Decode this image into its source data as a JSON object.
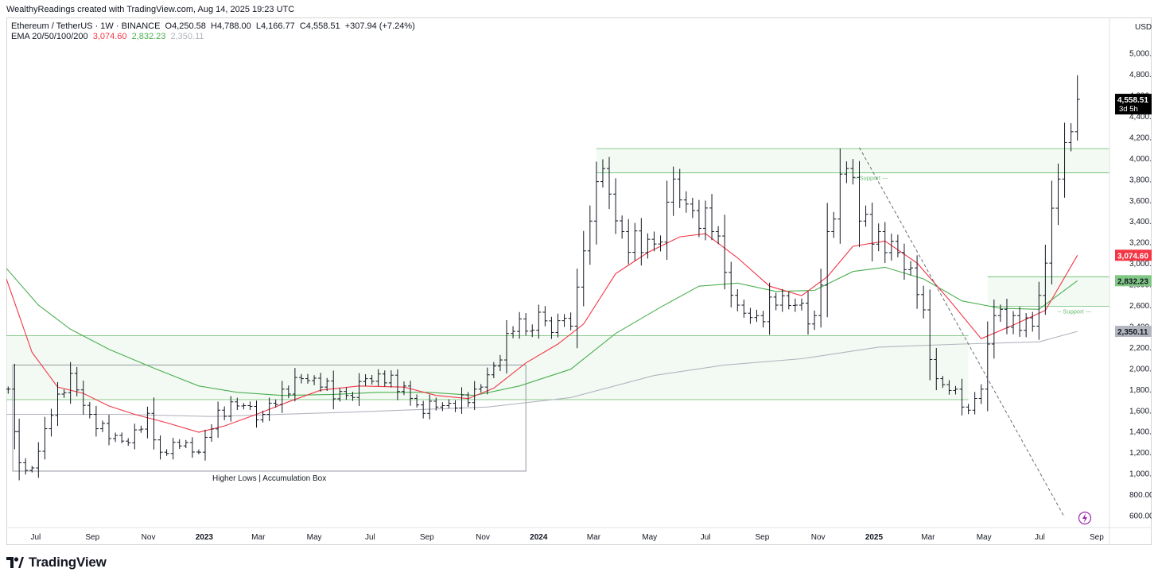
{
  "header": {
    "created_by": "WealthyReadings created with TradingView.com, Aug 14, 2025 19:23 UTC"
  },
  "legend": {
    "symbol": "Ethereum / TetherUS · 1W · BINANCE",
    "open_label": "O",
    "open": "4,250.58",
    "high_label": "H",
    "high": "4,788.00",
    "low_label": "L",
    "low": "4,166.77",
    "close_label": "C",
    "close": "4,558.51",
    "change": "+307.94 (+7.24%)",
    "ema_label": "EMA 20/50/100/200",
    "ema20": "3,074.60",
    "ema50": "2,832.23",
    "ema100": "2,350.11"
  },
  "price_scale": {
    "currency": "USDT",
    "last_price_label": "4,558.51",
    "countdown": "3d 5h",
    "ema20_label": "3,074.60",
    "ema50_label": "2,832.23",
    "ema100_label": "2,350.11"
  },
  "annotations": {
    "accumulation_box": "Higher Lows | Accumulation Box",
    "support_top": "Support",
    "support_right": "Support"
  },
  "footer": {
    "brand": "TradingView"
  },
  "colors": {
    "ema20": "#f23645",
    "ema50": "#4caf50",
    "ema100": "#b2b5be",
    "bar": "#131722",
    "zone_fill": "#e8f5e9",
    "zone_line": "#66bb6a",
    "box_line": "#9598a1",
    "last_price_bg": "#000000"
  },
  "chart_data": {
    "type": "ohlc-bar",
    "title": "Ethereum / TetherUS · 1W · BINANCE",
    "interval": "1W",
    "x_ticks": [
      "Jul",
      "Sep",
      "Nov",
      "2023",
      "Mar",
      "May",
      "Jul",
      "Sep",
      "Nov",
      "2024",
      "Mar",
      "May",
      "Jul",
      "Sep",
      "Nov",
      "2025",
      "Mar",
      "May",
      "Jul",
      "Sep"
    ],
    "x_range": [
      "2022-05-30",
      "2025-09-15"
    ],
    "y_ticks": [
      600,
      800,
      1000,
      1200,
      1400,
      1600,
      1800,
      2000,
      2200,
      2400,
      2600,
      2800,
      3000,
      3200,
      3400,
      3600,
      3800,
      4000,
      4200,
      4400,
      4600,
      4800,
      5000
    ],
    "ylim": [
      460,
      5300
    ],
    "grid": false,
    "price_closes": [
      [
        "2022-06-01",
        1800
      ],
      [
        "2022-06-13",
        1100
      ],
      [
        "2022-06-27",
        1050
      ],
      [
        "2022-07-18",
        1550
      ],
      [
        "2022-08-08",
        1950
      ],
      [
        "2022-08-29",
        1560
      ],
      [
        "2022-09-19",
        1330
      ],
      [
        "2022-10-10",
        1290
      ],
      [
        "2022-10-31",
        1570
      ],
      [
        "2022-11-14",
        1200
      ],
      [
        "2022-12-05",
        1260
      ],
      [
        "2022-12-26",
        1200
      ],
      [
        "2023-01-16",
        1600
      ],
      [
        "2023-02-06",
        1640
      ],
      [
        "2023-03-06",
        1560
      ],
      [
        "2023-03-27",
        1800
      ],
      [
        "2023-04-17",
        1900
      ],
      [
        "2023-05-08",
        1820
      ],
      [
        "2023-06-05",
        1740
      ],
      [
        "2023-06-26",
        1900
      ],
      [
        "2023-07-17",
        1860
      ],
      [
        "2023-08-07",
        1830
      ],
      [
        "2023-08-21",
        1650
      ],
      [
        "2023-09-11",
        1630
      ],
      [
        "2023-10-02",
        1620
      ],
      [
        "2023-10-23",
        1800
      ],
      [
        "2023-11-13",
        2020
      ],
      [
        "2023-12-04",
        2350
      ],
      [
        "2024-01-08",
        2450
      ],
      [
        "2024-02-05",
        2400
      ],
      [
        "2024-02-26",
        3400
      ],
      [
        "2024-03-11",
        3900
      ],
      [
        "2024-04-01",
        3300
      ],
      [
        "2024-04-22",
        3100
      ],
      [
        "2024-05-13",
        3200
      ],
      [
        "2024-05-27",
        3800
      ],
      [
        "2024-06-17",
        3500
      ],
      [
        "2024-07-08",
        3300
      ],
      [
        "2024-08-05",
        2600
      ],
      [
        "2024-08-26",
        2500
      ],
      [
        "2024-09-16",
        2600
      ],
      [
        "2024-10-07",
        2600
      ],
      [
        "2024-10-28",
        2500
      ],
      [
        "2024-11-11",
        3300
      ],
      [
        "2024-12-02",
        3900
      ],
      [
        "2024-12-16",
        3400
      ],
      [
        "2025-01-06",
        3300
      ],
      [
        "2025-01-27",
        3100
      ],
      [
        "2025-02-17",
        2700
      ],
      [
        "2025-03-10",
        1900
      ],
      [
        "2025-03-31",
        1800
      ],
      [
        "2025-04-14",
        1600
      ],
      [
        "2025-04-28",
        1800
      ],
      [
        "2025-05-12",
        2500
      ],
      [
        "2025-06-02",
        2500
      ],
      [
        "2025-06-23",
        2400
      ],
      [
        "2025-07-07",
        3000
      ],
      [
        "2025-07-21",
        3800
      ],
      [
        "2025-08-04",
        4250
      ],
      [
        "2025-08-11",
        4558.51
      ]
    ],
    "ema20": [
      [
        "2022-05-30",
        2850
      ],
      [
        "2022-06-27",
        2150
      ],
      [
        "2022-07-25",
        1820
      ],
      [
        "2022-08-22",
        1760
      ],
      [
        "2022-09-19",
        1640
      ],
      [
        "2022-10-17",
        1560
      ],
      [
        "2022-11-21",
        1480
      ],
      [
        "2022-12-26",
        1390
      ],
      [
        "2023-01-23",
        1450
      ],
      [
        "2023-02-27",
        1560
      ],
      [
        "2023-04-03",
        1680
      ],
      [
        "2023-05-08",
        1790
      ],
      [
        "2023-06-19",
        1830
      ],
      [
        "2023-08-07",
        1820
      ],
      [
        "2023-09-11",
        1740
      ],
      [
        "2023-10-16",
        1710
      ],
      [
        "2023-11-13",
        1810
      ],
      [
        "2023-12-18",
        2050
      ],
      [
        "2024-01-22",
        2230
      ],
      [
        "2024-02-19",
        2420
      ],
      [
        "2024-03-25",
        2900
      ],
      [
        "2024-04-29",
        3100
      ],
      [
        "2024-06-03",
        3250
      ],
      [
        "2024-07-01",
        3280
      ],
      [
        "2024-08-05",
        3050
      ],
      [
        "2024-09-09",
        2780
      ],
      [
        "2024-10-14",
        2690
      ],
      [
        "2024-11-11",
        2870
      ],
      [
        "2024-12-09",
        3160
      ],
      [
        "2025-01-13",
        3210
      ],
      [
        "2025-02-17",
        3000
      ],
      [
        "2025-03-24",
        2650
      ],
      [
        "2025-04-28",
        2280
      ],
      [
        "2025-06-02",
        2410
      ],
      [
        "2025-07-07",
        2550
      ],
      [
        "2025-08-11",
        3074.6
      ]
    ],
    "ema50": [
      [
        "2022-05-30",
        2950
      ],
      [
        "2022-07-04",
        2600
      ],
      [
        "2022-08-08",
        2370
      ],
      [
        "2022-09-19",
        2180
      ],
      [
        "2022-11-07",
        2000
      ],
      [
        "2022-12-26",
        1830
      ],
      [
        "2023-02-06",
        1770
      ],
      [
        "2023-03-27",
        1740
      ],
      [
        "2023-05-22",
        1750
      ],
      [
        "2023-07-10",
        1770
      ],
      [
        "2023-09-04",
        1770
      ],
      [
        "2023-10-23",
        1740
      ],
      [
        "2023-12-11",
        1830
      ],
      [
        "2024-02-05",
        1990
      ],
      [
        "2024-03-25",
        2330
      ],
      [
        "2024-05-13",
        2580
      ],
      [
        "2024-06-24",
        2780
      ],
      [
        "2024-08-05",
        2810
      ],
      [
        "2024-09-16",
        2730
      ],
      [
        "2024-10-28",
        2740
      ],
      [
        "2024-12-09",
        2920
      ],
      [
        "2025-01-13",
        2960
      ],
      [
        "2025-02-24",
        2850
      ],
      [
        "2025-04-07",
        2640
      ],
      [
        "2025-05-19",
        2570
      ],
      [
        "2025-06-30",
        2560
      ],
      [
        "2025-08-11",
        2832.23
      ]
    ],
    "ema100": [
      [
        "2022-05-30",
        1560
      ],
      [
        "2022-10-03",
        1560
      ],
      [
        "2023-01-09",
        1540
      ],
      [
        "2023-06-05",
        1580
      ],
      [
        "2023-11-06",
        1630
      ],
      [
        "2024-02-05",
        1720
      ],
      [
        "2024-05-06",
        1930
      ],
      [
        "2024-07-22",
        2030
      ],
      [
        "2024-10-14",
        2090
      ],
      [
        "2025-01-06",
        2200
      ],
      [
        "2025-04-07",
        2230
      ],
      [
        "2025-06-30",
        2250
      ],
      [
        "2025-08-11",
        2350.11
      ]
    ],
    "zones": [
      {
        "from": "2022-05-30",
        "to": "2025-04-14",
        "low": 1700,
        "high": 2310
      },
      {
        "from": "2024-03-04",
        "to": "2025-09-15",
        "low": 3860,
        "high": 4090
      },
      {
        "from": "2025-05-05",
        "to": "2025-09-15",
        "low": 2590,
        "high": 2870
      }
    ],
    "accumulation_box": {
      "from": "2022-06-06",
      "to": "2023-12-18",
      "low": 1020,
      "high": 2030
    },
    "trendline": {
      "from": [
        "2024-12-16",
        4100
      ],
      "to": [
        "2025-07-28",
        580
      ]
    }
  }
}
